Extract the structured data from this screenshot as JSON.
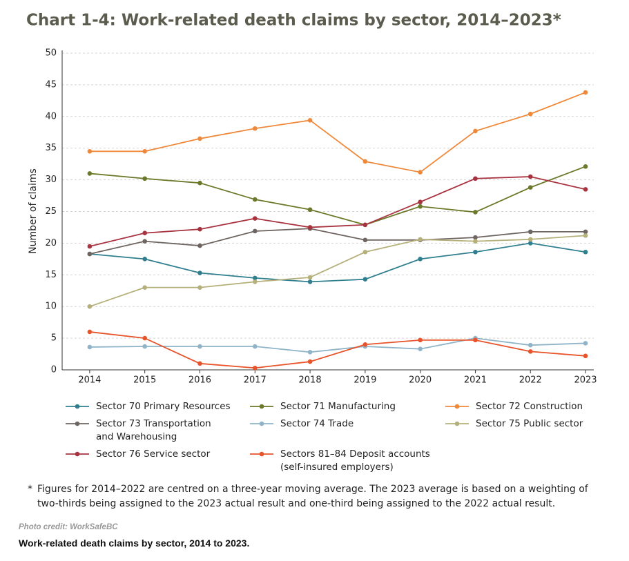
{
  "chart_data": {
    "type": "line",
    "title": "Chart 1-4: Work-related death claims by sector, 2014–2023*",
    "y_label": "Number of claims",
    "x": [
      2014,
      2015,
      2016,
      2017,
      2018,
      2019,
      2020,
      2021,
      2022,
      2023
    ],
    "xlim": [
      2013.5,
      2023.15
    ],
    "xticks": [
      2014,
      2015,
      2016,
      2017,
      2018,
      2019,
      2020,
      2021,
      2022,
      2023
    ],
    "ylim": [
      0,
      50
    ],
    "yticks": [
      0,
      5,
      10,
      15,
      20,
      25,
      30,
      35,
      40,
      45,
      50
    ],
    "grid": true,
    "series": [
      {
        "name": "Sector 70 Primary Resources",
        "color": "#2f7f8f",
        "values": [
          18.3,
          17.5,
          15.3,
          14.5,
          13.9,
          14.3,
          17.5,
          18.6,
          20.0,
          18.6
        ]
      },
      {
        "name": "Sector 71 Manufacturing",
        "color": "#6b7a2a",
        "values": [
          31.0,
          30.2,
          29.5,
          26.9,
          25.3,
          22.9,
          25.8,
          24.9,
          28.8,
          32.1
        ]
      },
      {
        "name": "Sector 72 Construction",
        "color": "#f0883a",
        "values": [
          34.5,
          34.5,
          36.5,
          38.1,
          39.4,
          32.9,
          31.2,
          37.7,
          40.4,
          43.8
        ]
      },
      {
        "name": "Sector 73 Transportation and Warehousing",
        "color": "#6e6560",
        "values": [
          18.3,
          20.3,
          19.6,
          21.9,
          22.3,
          20.5,
          20.5,
          20.9,
          21.8,
          21.8
        ]
      },
      {
        "name": "Sector 74 Trade",
        "color": "#8fb4c8",
        "values": [
          3.6,
          3.7,
          3.7,
          3.7,
          2.8,
          3.7,
          3.3,
          5.0,
          3.9,
          4.2
        ]
      },
      {
        "name": "Sector 75 Public sector",
        "color": "#b5b07a",
        "values": [
          10.0,
          13.0,
          13.0,
          13.9,
          14.6,
          18.6,
          20.6,
          20.3,
          20.6,
          21.2
        ]
      },
      {
        "name": "Sector 76 Service sector",
        "color": "#a8333f",
        "values": [
          19.5,
          21.6,
          22.2,
          23.9,
          22.5,
          22.9,
          26.5,
          30.2,
          30.5,
          28.5
        ]
      },
      {
        "name": "Sectors 81–84 Deposit accounts (self-insured employers)",
        "color": "#e8532a",
        "values": [
          6.0,
          5.0,
          1.0,
          0.3,
          1.3,
          4.0,
          4.7,
          4.7,
          2.9,
          2.2
        ]
      }
    ],
    "footnote_mark": "*",
    "footnote": "Figures for 2014–2022 are centred on a three-year moving average. The 2023 average is based on a weighting of two-thirds being assigned to the 2023 actual result and one-third being assigned to the 2022 actual result."
  },
  "caption": {
    "credit": "Photo credit: WorkSafeBC",
    "text": "Work-related death claims by sector, 2014 to 2023."
  }
}
